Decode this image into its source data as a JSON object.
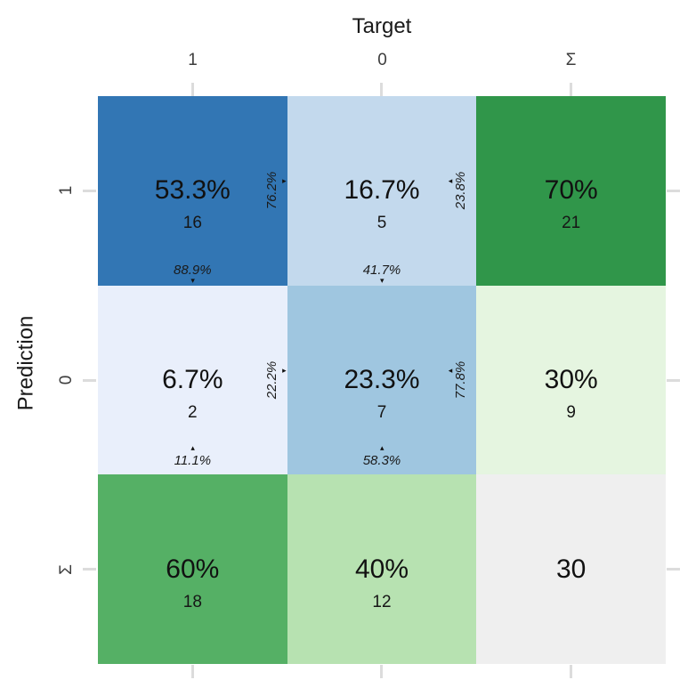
{
  "title": "Target",
  "axis": {
    "x_label": "Target",
    "y_label": "Prediction",
    "x_ticks": [
      "1",
      "0",
      "Σ"
    ],
    "y_ticks": [
      "1",
      "0",
      "Σ"
    ]
  },
  "colors": {
    "blue_dark": "#3276b4",
    "blue_medium": "#9fc6e0",
    "blue_light": "#c3d9ed",
    "blue_faint": "#e9effb",
    "green_dark": "#30964a",
    "green_medium": "#55b065",
    "green_light": "#b7e2b1",
    "green_faint": "#e5f5e0",
    "gray_total": "#efefef",
    "tick_gray": "#dcdcdc"
  },
  "cells": [
    {
      "pct": "53.3%",
      "count": "16",
      "bg": "#3276b4",
      "side_pct": "76.2%",
      "side_arrow": "▸",
      "col_pct": "88.9%",
      "col_arrow": "▾"
    },
    {
      "pct": "16.7%",
      "count": "5",
      "bg": "#c3d9ed",
      "side_pct": "23.8%",
      "side_arrow": "◂",
      "col_pct": "41.7%",
      "col_arrow": "▾"
    },
    {
      "pct": "70%",
      "count": "21",
      "bg": "#30964a"
    },
    {
      "pct": "6.7%",
      "count": "2",
      "bg": "#e9effb",
      "side_pct": "22.2%",
      "side_arrow": "▸",
      "col_pct": "11.1%",
      "col_arrow": "▴"
    },
    {
      "pct": "23.3%",
      "count": "7",
      "bg": "#9fc6e0",
      "side_pct": "77.8%",
      "side_arrow": "◂",
      "col_pct": "58.3%",
      "col_arrow": "▴"
    },
    {
      "pct": "30%",
      "count": "9",
      "bg": "#e5f5e0"
    },
    {
      "pct": "60%",
      "count": "18",
      "bg": "#55b065"
    },
    {
      "pct": "40%",
      "count": "12",
      "bg": "#b7e2b1"
    },
    {
      "pct": "30",
      "count": "",
      "bg": "#efefef"
    }
  ],
  "chart_data": {
    "type": "heatmap",
    "xlabel": "Target",
    "ylabel": "Prediction",
    "x_categories": [
      "1",
      "0",
      "Σ"
    ],
    "y_categories": [
      "1",
      "0",
      "Σ"
    ],
    "total_n": 30,
    "cells": [
      {
        "prediction": "1",
        "target": "1",
        "percent": 53.3,
        "count": 16,
        "row_percent": 76.2,
        "column_percent": 88.9
      },
      {
        "prediction": "1",
        "target": "0",
        "percent": 16.7,
        "count": 5,
        "row_percent": 23.8,
        "column_percent": 41.7
      },
      {
        "prediction": "1",
        "target": "Σ",
        "percent": 70,
        "count": 21
      },
      {
        "prediction": "0",
        "target": "1",
        "percent": 6.7,
        "count": 2,
        "row_percent": 22.2,
        "column_percent": 11.1
      },
      {
        "prediction": "0",
        "target": "0",
        "percent": 23.3,
        "count": 7,
        "row_percent": 77.8,
        "column_percent": 58.3
      },
      {
        "prediction": "0",
        "target": "Σ",
        "percent": 30,
        "count": 9
      },
      {
        "prediction": "Σ",
        "target": "1",
        "percent": 60,
        "count": 18
      },
      {
        "prediction": "Σ",
        "target": "0",
        "percent": 40,
        "count": 12
      },
      {
        "prediction": "Σ",
        "target": "Σ",
        "count": 30
      }
    ]
  }
}
